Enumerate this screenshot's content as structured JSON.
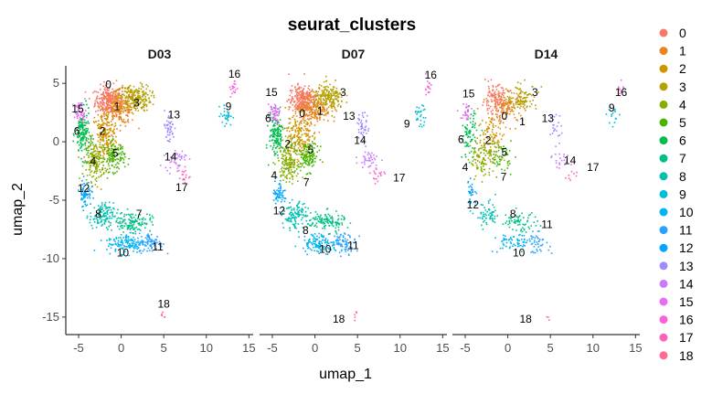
{
  "chart_data": {
    "type": "scatter",
    "title": "seurat_clusters",
    "xlabel": "umap_1",
    "ylabel": "umap_2",
    "xlim": [
      -6.5,
      15.5
    ],
    "ylim": [
      -16.5,
      6.5
    ],
    "xticks": [
      -5,
      0,
      5,
      10,
      15
    ],
    "yticks": [
      5,
      0,
      -5,
      -10,
      -15
    ],
    "grid": false,
    "legend_position": "right",
    "legend_title": "",
    "clusters": [
      {
        "name": "0",
        "color": "#F8766D"
      },
      {
        "name": "1",
        "color": "#E7851E"
      },
      {
        "name": "2",
        "color": "#D09400"
      },
      {
        "name": "3",
        "color": "#B2A100"
      },
      {
        "name": "4",
        "color": "#89AC00"
      },
      {
        "name": "5",
        "color": "#45B500"
      },
      {
        "name": "6",
        "color": "#00BC51"
      },
      {
        "name": "7",
        "color": "#00C087"
      },
      {
        "name": "8",
        "color": "#00C0B2"
      },
      {
        "name": "9",
        "color": "#00BCD6"
      },
      {
        "name": "10",
        "color": "#00B3F2"
      },
      {
        "name": "11",
        "color": "#29A3FF"
      },
      {
        "name": "12",
        "color": "#00A5FF"
      },
      {
        "name": "13",
        "color": "#9C8DFF"
      },
      {
        "name": "14",
        "color": "#C77CFF"
      },
      {
        "name": "15",
        "color": "#E76BF3"
      },
      {
        "name": "16",
        "color": "#FA62DB"
      },
      {
        "name": "17",
        "color": "#FF62BC"
      },
      {
        "name": "18",
        "color": "#FF6C91"
      }
    ],
    "facets": [
      {
        "title": "D03",
        "density": 1.0,
        "labels": [
          {
            "text": "0",
            "x": -1.5,
            "y": 4.6
          },
          {
            "text": "1",
            "x": -0.5,
            "y": 2.7
          },
          {
            "text": "2",
            "x": -2.2,
            "y": 0.6
          },
          {
            "text": "3",
            "x": 1.8,
            "y": 3.0
          },
          {
            "text": "4",
            "x": -3.3,
            "y": -2.0
          },
          {
            "text": "5",
            "x": -0.7,
            "y": -1.3
          },
          {
            "text": "6",
            "x": -5.2,
            "y": 0.6
          },
          {
            "text": "7",
            "x": 2.1,
            "y": -6.5
          },
          {
            "text": "8",
            "x": -2.7,
            "y": -6.5
          },
          {
            "text": "9",
            "x": 12.6,
            "y": 2.7
          },
          {
            "text": "10",
            "x": 0.2,
            "y": -9.8
          },
          {
            "text": "11",
            "x": 4.3,
            "y": -9.3
          },
          {
            "text": "12",
            "x": -4.4,
            "y": -4.3
          },
          {
            "text": "13",
            "x": 6.2,
            "y": 2.0
          },
          {
            "text": "14",
            "x": 5.8,
            "y": -1.6
          },
          {
            "text": "15",
            "x": -5.1,
            "y": 2.5
          },
          {
            "text": "16",
            "x": 13.3,
            "y": 5.5
          },
          {
            "text": "17",
            "x": 7.1,
            "y": -4.2
          },
          {
            "text": "18",
            "x": 5.0,
            "y": -14.2
          }
        ]
      },
      {
        "title": "D07",
        "density": 0.95,
        "labels": [
          {
            "text": "0",
            "x": -1.5,
            "y": 2.1
          },
          {
            "text": "1",
            "x": 0.6,
            "y": 2.3
          },
          {
            "text": "2",
            "x": -3.2,
            "y": -0.5
          },
          {
            "text": "3",
            "x": 3.3,
            "y": 3.9
          },
          {
            "text": "4",
            "x": -4.8,
            "y": -3.2
          },
          {
            "text": "5",
            "x": -0.5,
            "y": -1.0
          },
          {
            "text": "6",
            "x": -5.5,
            "y": 1.7
          },
          {
            "text": "7",
            "x": -1.0,
            "y": -3.8
          },
          {
            "text": "8",
            "x": -1.1,
            "y": -7.9
          },
          {
            "text": "9",
            "x": 10.8,
            "y": 1.2
          },
          {
            "text": "10",
            "x": 1.2,
            "y": -9.5
          },
          {
            "text": "11",
            "x": 4.5,
            "y": -9.2
          },
          {
            "text": "12",
            "x": -4.2,
            "y": -6.2
          },
          {
            "text": "13",
            "x": 4.0,
            "y": 1.9
          },
          {
            "text": "14",
            "x": 5.3,
            "y": -0.2
          },
          {
            "text": "15",
            "x": -5.1,
            "y": 3.9
          },
          {
            "text": "16",
            "x": 13.6,
            "y": 5.4
          },
          {
            "text": "17",
            "x": 9.9,
            "y": -3.4
          },
          {
            "text": "18",
            "x": 2.8,
            "y": -15.5
          }
        ]
      },
      {
        "title": "D14",
        "density": 0.5,
        "labels": [
          {
            "text": "0",
            "x": -0.4,
            "y": 1.9
          },
          {
            "text": "1",
            "x": 1.7,
            "y": 1.4
          },
          {
            "text": "2",
            "x": -2.3,
            "y": -0.2
          },
          {
            "text": "3",
            "x": 3.2,
            "y": 3.9
          },
          {
            "text": "4",
            "x": -5.0,
            "y": -2.5
          },
          {
            "text": "5",
            "x": -0.4,
            "y": -1.2
          },
          {
            "text": "6",
            "x": -5.5,
            "y": -0.1
          },
          {
            "text": "7",
            "x": -0.5,
            "y": -3.3
          },
          {
            "text": "8",
            "x": 0.6,
            "y": -6.5
          },
          {
            "text": "9",
            "x": 12.2,
            "y": 2.6
          },
          {
            "text": "10",
            "x": 1.3,
            "y": -9.8
          },
          {
            "text": "11",
            "x": 4.6,
            "y": -7.4
          },
          {
            "text": "12",
            "x": -4.1,
            "y": -5.7
          },
          {
            "text": "13",
            "x": 4.7,
            "y": 1.7
          },
          {
            "text": "14",
            "x": 7.3,
            "y": -1.9
          },
          {
            "text": "15",
            "x": -4.6,
            "y": 3.8
          },
          {
            "text": "16",
            "x": 13.3,
            "y": 3.9
          },
          {
            "text": "17",
            "x": 10.0,
            "y": -2.5
          },
          {
            "text": "18",
            "x": 2.1,
            "y": -15.5
          }
        ]
      }
    ]
  }
}
